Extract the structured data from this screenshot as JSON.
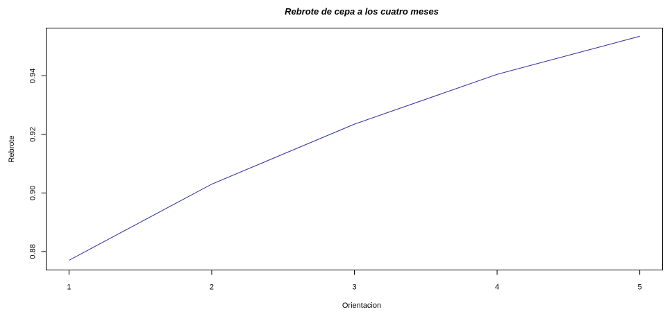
{
  "chart_data": {
    "type": "line",
    "title": "Rebrote de cepa a los cuatro meses",
    "xlabel": "Orientacion",
    "ylabel": "Rebrote",
    "x": [
      1,
      2,
      3,
      4,
      5
    ],
    "xticks": [
      1,
      2,
      3,
      4,
      5
    ],
    "xtick_labels": [
      "1",
      "2",
      "3",
      "4",
      "5"
    ],
    "yticks": [
      0.88,
      0.9,
      0.92,
      0.94
    ],
    "ytick_labels": [
      "0.88",
      "0.90",
      "0.92",
      "0.94"
    ],
    "xlim": [
      0.84,
      5.16
    ],
    "ylim": [
      0.8737,
      0.9563
    ],
    "grid": false,
    "series": [
      {
        "values": [
          0.877,
          0.903,
          0.9235,
          0.9405,
          0.9535
        ],
        "color": "#3a3aa8"
      }
    ]
  }
}
